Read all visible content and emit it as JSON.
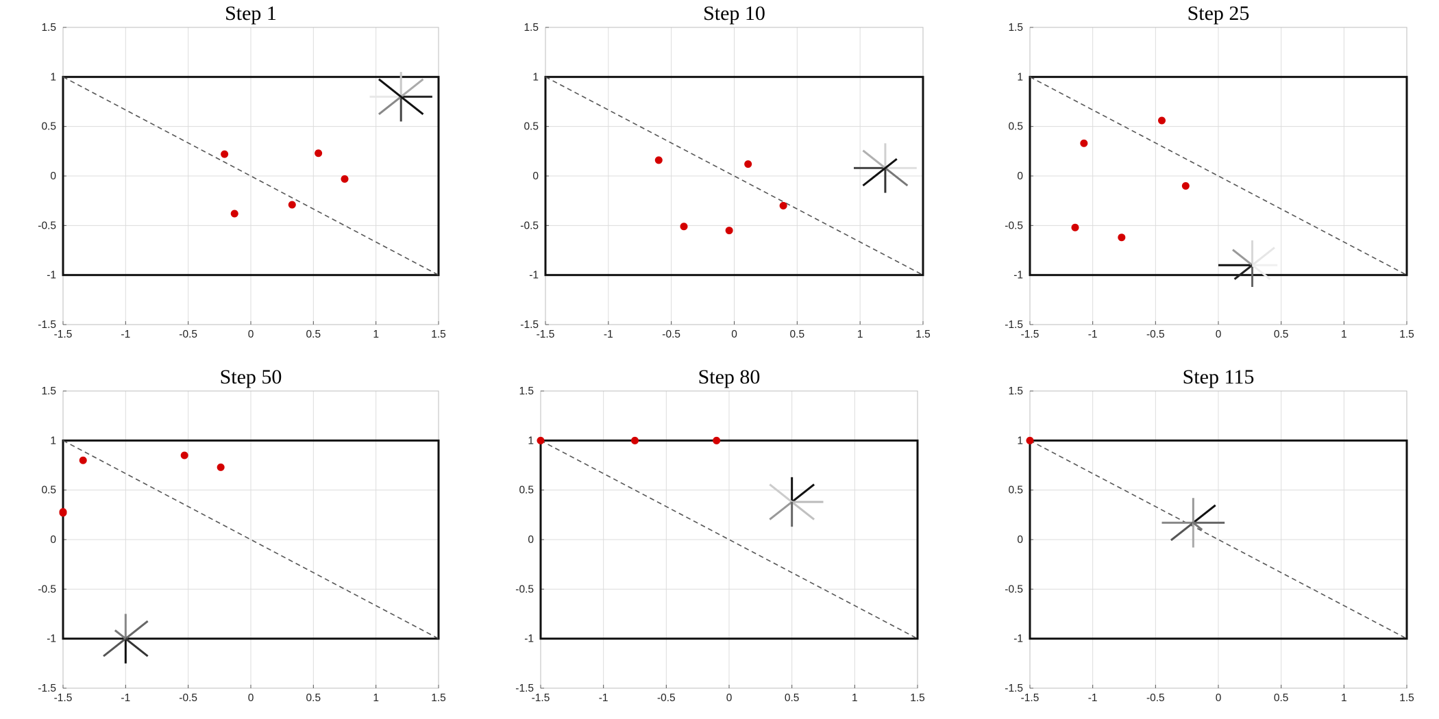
{
  "colors": {
    "point": "#d40000",
    "arena": "#111111",
    "diagonal": "#555555",
    "grid": "#dcdcdc"
  },
  "chart_data": [
    {
      "type": "scatter",
      "title": "Step 1",
      "xlim": [
        -1.5,
        1.5
      ],
      "ylim": [
        -1.5,
        1.5
      ],
      "xticks": [
        -1.5,
        -1,
        -0.5,
        0,
        0.5,
        1,
        1.5
      ],
      "yticks": [
        -1.5,
        -1,
        -0.5,
        0,
        0.5,
        1,
        1.5
      ],
      "xtick_labels": [
        "-1.5",
        "-1",
        "-0.5",
        "0",
        "0.5",
        "1",
        "1.5"
      ],
      "ytick_labels": [
        "-1.5",
        "-1",
        "-0.5",
        "0",
        "0.5",
        "1",
        "1.5"
      ],
      "grid": true,
      "rectangle": {
        "x": [
          -1.5,
          1.5
        ],
        "y": [
          -1,
          1
        ]
      },
      "diagonal": [
        [
          -1.5,
          1
        ],
        [
          1.5,
          -1
        ]
      ],
      "points": [
        [
          -0.21,
          0.22
        ],
        [
          -0.13,
          -0.38
        ],
        [
          0.33,
          -0.29
        ],
        [
          0.54,
          0.23
        ],
        [
          0.75,
          -0.03
        ]
      ],
      "star": {
        "center": [
          1.2,
          0.8
        ],
        "rays": [
          {
            "angle": 0,
            "length": 0.25,
            "color": "#222222"
          },
          {
            "angle": 180,
            "length": 0.25,
            "color": "#e8e8e8"
          },
          {
            "angle": 90,
            "length": 0.25,
            "color": "#c8c8c8"
          },
          {
            "angle": 270,
            "length": 0.25,
            "color": "#444444"
          },
          {
            "angle": 45,
            "length": 0.25,
            "color": "#aaaaaa"
          },
          {
            "angle": 225,
            "length": 0.25,
            "color": "#888888"
          },
          {
            "angle": 135,
            "length": 0.25,
            "color": "#111111"
          },
          {
            "angle": 315,
            "length": 0.25,
            "color": "#111111"
          }
        ]
      }
    },
    {
      "type": "scatter",
      "title": "Step 10",
      "xlim": [
        -1.5,
        1.5
      ],
      "ylim": [
        -1.5,
        1.5
      ],
      "xticks": [
        -1.5,
        -1,
        -0.5,
        0,
        0.5,
        1,
        1.5
      ],
      "yticks": [
        -1.5,
        -1,
        -0.5,
        0,
        0.5,
        1,
        1.5
      ],
      "xtick_labels": [
        "-1.5",
        "-1",
        "-0.5",
        "0",
        "0.5",
        "1",
        "1.5"
      ],
      "ytick_labels": [
        "-1.5",
        "-1",
        "-0.5",
        "0",
        "0.5",
        "1",
        "1.5"
      ],
      "grid": true,
      "rectangle": {
        "x": [
          -1.5,
          1.5
        ],
        "y": [
          -1,
          1
        ]
      },
      "diagonal": [
        [
          -1.5,
          1
        ],
        [
          1.5,
          -1
        ]
      ],
      "points": [
        [
          -0.6,
          0.16
        ],
        [
          -0.4,
          -0.51
        ],
        [
          -0.04,
          -0.55
        ],
        [
          0.11,
          0.12
        ],
        [
          0.39,
          -0.3
        ]
      ],
      "star": {
        "center": [
          1.2,
          0.08
        ],
        "rays": [
          {
            "angle": 0,
            "length": 0.25,
            "color": "#e0e0e0"
          },
          {
            "angle": 180,
            "length": 0.25,
            "color": "#444444"
          },
          {
            "angle": 90,
            "length": 0.25,
            "color": "#d0d0d0"
          },
          {
            "angle": 270,
            "length": 0.25,
            "color": "#333333"
          },
          {
            "angle": 135,
            "length": 0.25,
            "color": "#b0b0b0"
          },
          {
            "angle": 315,
            "length": 0.25,
            "color": "#777777"
          },
          {
            "angle": 225,
            "length": 0.25,
            "color": "#111111"
          },
          {
            "angle": 45,
            "length": 0.13,
            "color": "#111111"
          }
        ]
      }
    },
    {
      "type": "scatter",
      "title": "Step 25",
      "xlim": [
        -1.5,
        1.5
      ],
      "ylim": [
        -1.5,
        1.5
      ],
      "xticks": [
        -1.5,
        -1,
        -0.5,
        0,
        0.5,
        1,
        1.5
      ],
      "yticks": [
        -1.5,
        -1,
        -0.5,
        0,
        0.5,
        1,
        1.5
      ],
      "xtick_labels": [
        "-1.5",
        "-1",
        "-0.5",
        "0",
        "0.5",
        "1",
        "1.5"
      ],
      "ytick_labels": [
        "-1.5",
        "-1",
        "-0.5",
        "0",
        "0.5",
        "1",
        "1.5"
      ],
      "grid": true,
      "rectangle": {
        "x": [
          -1.5,
          1.5
        ],
        "y": [
          -1,
          1
        ]
      },
      "diagonal": [
        [
          -1.5,
          1
        ],
        [
          1.5,
          -1
        ]
      ],
      "points": [
        [
          -1.07,
          0.33
        ],
        [
          -0.45,
          0.56
        ],
        [
          -0.26,
          -0.1
        ],
        [
          -1.14,
          -0.52
        ],
        [
          -0.77,
          -0.62
        ]
      ],
      "star": {
        "center": [
          0.27,
          -0.9
        ],
        "rays": [
          {
            "angle": 180,
            "length": 0.27,
            "color": "#111111"
          },
          {
            "angle": 0,
            "length": 0.2,
            "color": "#f0f0f0"
          },
          {
            "angle": 90,
            "length": 0.25,
            "color": "#d8d8d8"
          },
          {
            "angle": 270,
            "length": 0.22,
            "color": "#666666"
          },
          {
            "angle": 135,
            "length": 0.22,
            "color": "#999999"
          },
          {
            "angle": 45,
            "length": 0.25,
            "color": "#e6e6e6"
          },
          {
            "angle": 225,
            "length": 0.2,
            "color": "#222222"
          },
          {
            "angle": 315,
            "length": 0.2,
            "color": "#eeeeee"
          }
        ]
      }
    },
    {
      "type": "scatter",
      "title": "Step 50",
      "xlim": [
        -1.5,
        1.5
      ],
      "ylim": [
        -1.5,
        1.5
      ],
      "xticks": [
        -1.5,
        -1,
        -0.5,
        0,
        0.5,
        1,
        1.5
      ],
      "yticks": [
        -1.5,
        -1,
        -0.5,
        0,
        0.5,
        1,
        1.5
      ],
      "xtick_labels": [
        "-1.5",
        "-1",
        "-0.5",
        "0",
        "0.5",
        "1",
        "1.5"
      ],
      "ytick_labels": [
        "-1.5",
        "-1",
        "-0.5",
        "0",
        "0.5",
        "1",
        "1.5"
      ],
      "grid": true,
      "rectangle": {
        "x": [
          -1.5,
          1.5
        ],
        "y": [
          -1,
          1
        ]
      },
      "diagonal": [
        [
          -1.5,
          1
        ],
        [
          1.5,
          -1
        ]
      ],
      "points": [
        [
          -1.34,
          0.8
        ],
        [
          -0.53,
          0.85
        ],
        [
          -0.24,
          0.73
        ],
        [
          -1.5,
          0.28
        ],
        [
          -1.5,
          0.27
        ]
      ],
      "star": {
        "center": [
          -1.0,
          -1.0
        ],
        "rays": [
          {
            "angle": 90,
            "length": 0.25,
            "color": "#888888"
          },
          {
            "angle": 270,
            "length": 0.25,
            "color": "#111111"
          },
          {
            "angle": 45,
            "length": 0.25,
            "color": "#666666"
          },
          {
            "angle": 225,
            "length": 0.25,
            "color": "#555555"
          },
          {
            "angle": 315,
            "length": 0.25,
            "color": "#333333"
          },
          {
            "angle": 135,
            "length": 0.12,
            "color": "#777777"
          }
        ]
      }
    },
    {
      "type": "scatter",
      "title": "Step 80",
      "xlim": [
        -1.5,
        1.5
      ],
      "ylim": [
        -1.5,
        1.5
      ],
      "xticks": [
        -1.5,
        -1,
        -0.5,
        0,
        0.5,
        1,
        1.5
      ],
      "yticks": [
        -1.5,
        -1,
        -0.5,
        0,
        0.5,
        1,
        1.5
      ],
      "xtick_labels": [
        "-1.5",
        "-1",
        "-0.5",
        "0",
        "0.5",
        "1",
        "1.5"
      ],
      "ytick_labels": [
        "-1.5",
        "-1",
        "-0.5",
        "0",
        "0.5",
        "1",
        "1.5"
      ],
      "grid": true,
      "rectangle": {
        "x": [
          -1.5,
          1.5
        ],
        "y": [
          -1,
          1
        ]
      },
      "diagonal": [
        [
          -1.5,
          1
        ],
        [
          1.5,
          -1
        ]
      ],
      "points": [
        [
          -1.5,
          1.0
        ],
        [
          -0.75,
          1.0
        ],
        [
          -0.1,
          1.0
        ]
      ],
      "star": {
        "center": [
          0.5,
          0.38
        ],
        "rays": [
          {
            "angle": 90,
            "length": 0.25,
            "color": "#111111"
          },
          {
            "angle": 45,
            "length": 0.25,
            "color": "#111111"
          },
          {
            "angle": 0,
            "length": 0.25,
            "color": "#bbbbbb"
          },
          {
            "angle": 135,
            "length": 0.25,
            "color": "#cccccc"
          },
          {
            "angle": 225,
            "length": 0.25,
            "color": "#999999"
          },
          {
            "angle": 315,
            "length": 0.25,
            "color": "#c0c0c0"
          },
          {
            "angle": 270,
            "length": 0.25,
            "color": "#666666"
          }
        ]
      }
    },
    {
      "type": "scatter",
      "title": "Step 115",
      "xlim": [
        -1.5,
        1.5
      ],
      "ylim": [
        -1.5,
        1.5
      ],
      "xticks": [
        -1.5,
        -1,
        -0.5,
        0,
        0.5,
        1,
        1.5
      ],
      "yticks": [
        -1.5,
        -1,
        -0.5,
        0,
        0.5,
        1,
        1.5
      ],
      "xtick_labels": [
        "-1.5",
        "-1",
        "-0.5",
        "0",
        "0.5",
        "1",
        "1.5"
      ],
      "ytick_labels": [
        "-1.5",
        "-1",
        "-0.5",
        "0",
        "0.5",
        "1",
        "1.5"
      ],
      "grid": true,
      "rectangle": {
        "x": [
          -1.5,
          1.5
        ],
        "y": [
          -1,
          1
        ]
      },
      "diagonal": [
        [
          -1.5,
          1
        ],
        [
          1.5,
          -1
        ]
      ],
      "points": [
        [
          -1.5,
          1.0
        ]
      ],
      "star": {
        "center": [
          -0.2,
          0.17
        ],
        "rays": [
          {
            "angle": 45,
            "length": 0.25,
            "color": "#111111"
          },
          {
            "angle": 90,
            "length": 0.25,
            "color": "#999999"
          },
          {
            "angle": 180,
            "length": 0.25,
            "color": "#888888"
          },
          {
            "angle": 0,
            "length": 0.25,
            "color": "#666666"
          },
          {
            "angle": 225,
            "length": 0.25,
            "color": "#555555"
          },
          {
            "angle": 270,
            "length": 0.25,
            "color": "#aaaaaa"
          },
          {
            "angle": 315,
            "length": 0.1,
            "color": "#777777"
          }
        ]
      }
    }
  ]
}
